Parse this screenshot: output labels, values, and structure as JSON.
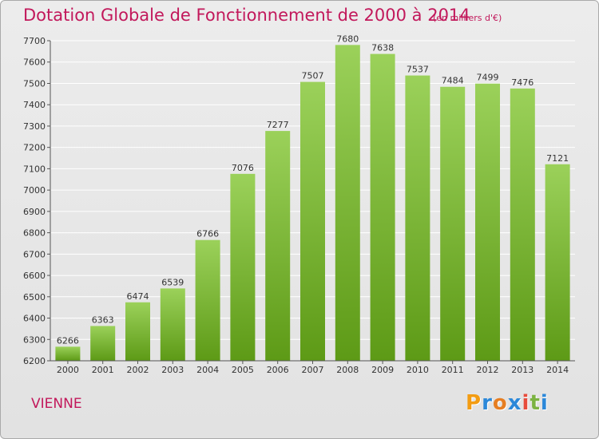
{
  "header": {
    "title": "Dotation Globale de Fonctionnement de 2000 à 2014",
    "subtitle": "(en milliers d'€)"
  },
  "footer": {
    "commune": "VIENNE",
    "logo": "Proxiti",
    "logo_colors": [
      "#f39c12",
      "#2c88d9",
      "#e67e22",
      "#2c88d9",
      "#e74c3c",
      "#7cb342",
      "#2c88d9"
    ]
  },
  "colors": {
    "title": "#c2185b",
    "bar_top": "#9bd15a",
    "bar_bottom": "#5d9a16",
    "grid": "#ffffff",
    "axis": "#555555",
    "text": "#333333"
  },
  "chart_data": {
    "type": "bar",
    "title": "Dotation Globale de Fonctionnement de 2000 à 2014",
    "subtitle": "(en milliers d'€)",
    "xlabel": "",
    "ylabel": "",
    "categories": [
      "2000",
      "2001",
      "2002",
      "2003",
      "2004",
      "2005",
      "2006",
      "2007",
      "2008",
      "2009",
      "2010",
      "2011",
      "2012",
      "2013",
      "2014"
    ],
    "values": [
      6266,
      6363,
      6474,
      6539,
      6766,
      7076,
      7277,
      7507,
      7680,
      7638,
      7537,
      7484,
      7499,
      7476,
      7121
    ],
    "ylim": [
      6200,
      7700
    ],
    "yticks": [
      6200,
      6300,
      6400,
      6500,
      6600,
      6700,
      6800,
      6900,
      7000,
      7100,
      7200,
      7300,
      7400,
      7500,
      7600,
      7700
    ],
    "grid": true,
    "data_labels": true
  }
}
